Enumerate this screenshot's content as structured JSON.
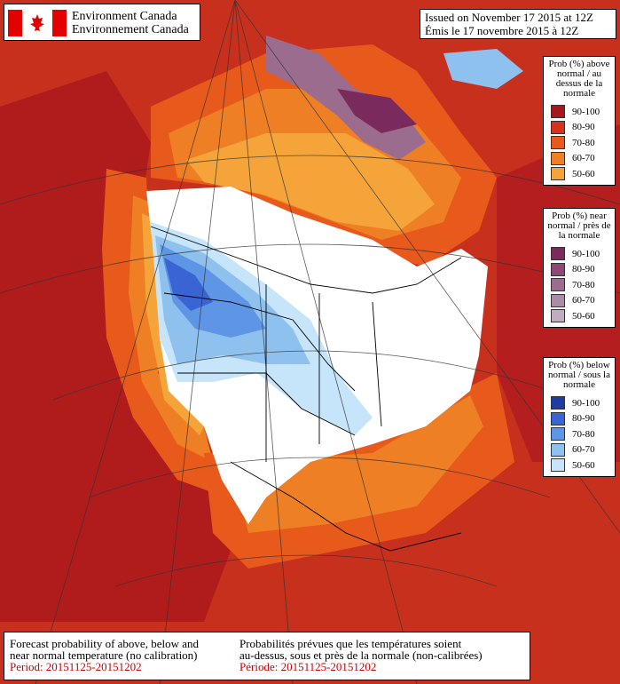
{
  "header": {
    "org_en": "Environment Canada",
    "org_fr": "Environnement Canada",
    "issued_en": "Issued on November 17 2015 at 12Z",
    "issued_fr": "Émis le 17 novembre 2015 à 12Z"
  },
  "legends": [
    {
      "title": "Prob (%) above normal / au dessus de la normale",
      "items": [
        {
          "label": "90-100",
          "color": "#a5161d"
        },
        {
          "label": "80-90",
          "color": "#d7301f"
        },
        {
          "label": "70-80",
          "color": "#e8591c"
        },
        {
          "label": "60-70",
          "color": "#ef7f24"
        },
        {
          "label": "50-60",
          "color": "#f5a43a"
        }
      ]
    },
    {
      "title": "Prob (%) near normal / près de la normale",
      "items": [
        {
          "label": "90-100",
          "color": "#7a2a5c"
        },
        {
          "label": "80-90",
          "color": "#8e4877"
        },
        {
          "label": "70-80",
          "color": "#9c6c8e"
        },
        {
          "label": "60-70",
          "color": "#ab8ba6"
        },
        {
          "label": "50-60",
          "color": "#c1acc0"
        }
      ]
    },
    {
      "title": "Prob (%) below normal / sous la normale",
      "items": [
        {
          "label": "90-100",
          "color": "#1f3aa0"
        },
        {
          "label": "80-90",
          "color": "#3a63d4"
        },
        {
          "label": "70-80",
          "color": "#5f95e5"
        },
        {
          "label": "60-70",
          "color": "#8fc1ef"
        },
        {
          "label": "50-60",
          "color": "#c6e4fa"
        }
      ]
    }
  ],
  "caption": {
    "en_line1": "Forecast probability of above, below and",
    "en_line2": "near normal temperature (no calibration)",
    "en_period": "Period: 20151125-20151202",
    "fr_line1": "Probabilités prévues que les températures soient",
    "fr_line2": "au-dessus, sous et près de la normale (non-calibrées)",
    "fr_period": "Période: 20151125-20151202"
  }
}
